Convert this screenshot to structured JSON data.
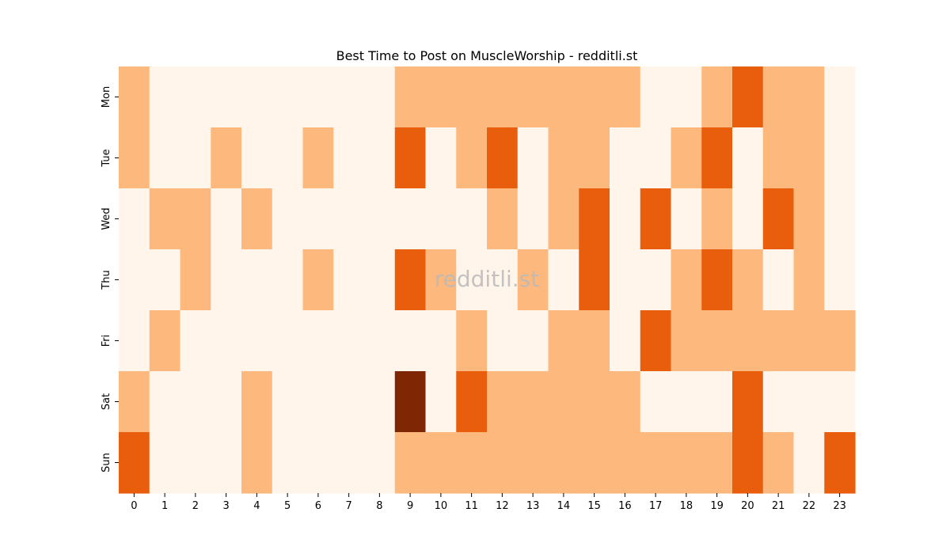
{
  "chart_data": {
    "type": "heatmap",
    "title": "Best Time to Post on MuscleWorship - redditli.st",
    "watermark": "redditli.st",
    "xlabel": "",
    "ylabel": "",
    "x_categories": [
      "0",
      "1",
      "2",
      "3",
      "4",
      "5",
      "6",
      "7",
      "8",
      "9",
      "10",
      "11",
      "12",
      "13",
      "14",
      "15",
      "16",
      "17",
      "18",
      "19",
      "20",
      "21",
      "22",
      "23"
    ],
    "y_categories": [
      "Mon",
      "Tue",
      "Wed",
      "Thu",
      "Fri",
      "Sat",
      "Sun"
    ],
    "values": [
      [
        1,
        0,
        0,
        0,
        0,
        0,
        0,
        0,
        0,
        1,
        1,
        1,
        1,
        1,
        1,
        1,
        1,
        0,
        0,
        1,
        2,
        1,
        1,
        0
      ],
      [
        1,
        0,
        0,
        1,
        0,
        0,
        1,
        0,
        0,
        2,
        0,
        1,
        2,
        0,
        1,
        1,
        0,
        0,
        1,
        2,
        0,
        1,
        1,
        0
      ],
      [
        0,
        1,
        1,
        0,
        1,
        0,
        0,
        0,
        0,
        0,
        0,
        0,
        1,
        0,
        1,
        2,
        0,
        2,
        0,
        1,
        0,
        2,
        1,
        0
      ],
      [
        0,
        0,
        1,
        0,
        0,
        0,
        1,
        0,
        0,
        2,
        1,
        0,
        0,
        1,
        0,
        2,
        0,
        0,
        1,
        2,
        1,
        0,
        1,
        0
      ],
      [
        0,
        1,
        0,
        0,
        0,
        0,
        0,
        0,
        0,
        0,
        0,
        1,
        0,
        0,
        1,
        1,
        0,
        2,
        1,
        1,
        1,
        1,
        1,
        1
      ],
      [
        1,
        0,
        0,
        0,
        1,
        0,
        0,
        0,
        0,
        3,
        0,
        2,
        1,
        1,
        1,
        1,
        1,
        0,
        0,
        0,
        2,
        0,
        0,
        0
      ],
      [
        2,
        0,
        0,
        0,
        1,
        0,
        0,
        0,
        0,
        1,
        1,
        1,
        1,
        1,
        1,
        1,
        1,
        1,
        1,
        1,
        2,
        1,
        0,
        2
      ]
    ],
    "value_range": [
      0,
      3
    ],
    "colormap": "Oranges",
    "colors": [
      "#fff5eb",
      "#fdb97d",
      "#e95e0d",
      "#7f2704"
    ],
    "colorbar": false
  }
}
